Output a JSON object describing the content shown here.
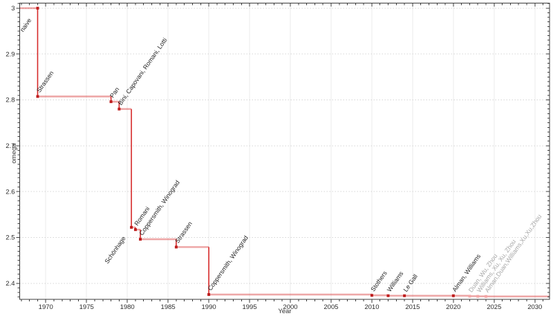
{
  "figure": {
    "xlabel": "Year",
    "ylabel": "omega"
  },
  "chart_data": {
    "type": "line",
    "subtype": "step-post",
    "title": "",
    "xlabel": "Year",
    "ylabel": "omega",
    "x_ticks_major": [
      1970,
      1975,
      1980,
      1985,
      1990,
      1995,
      2000,
      2005,
      2010,
      2015,
      2020,
      2025,
      2030
    ],
    "y_ticks_major": [
      2.4,
      2.5,
      2.6,
      2.7,
      2.8,
      2.9,
      3.0
    ],
    "x_minor_step": 1,
    "y_minor_step": 0.01,
    "x_range": [
      1966.8,
      2031.8
    ],
    "y_range": [
      2.365,
      3.011
    ],
    "grid": "major",
    "legend": "none",
    "annotation_rotation_deg": -55,
    "colors": {
      "step_horizontal": "rgba(214,45,45,0.42)",
      "step_vertical": "#d62828",
      "marker": "#be1e1e",
      "marker_muted": "#f2a6a6",
      "label": "#1f1f1f",
      "label_muted": "#a6a6a6",
      "frame": "#3a3a3a",
      "grid_vertical": "#ebebeb",
      "grid_horizontal": "#d4d4d4"
    },
    "points": [
      {
        "label": "naive",
        "year": 1969,
        "omega": 3.0,
        "muted": false,
        "label_offset": [
          -21,
          35
        ]
      },
      {
        "label": "Strassen",
        "year": 1969,
        "omega": 2.8074,
        "muted": false
      },
      {
        "label": "Pan",
        "year": 1978,
        "omega": 2.796,
        "muted": false
      },
      {
        "label": "Bini, Capovani, Romani, Lotti",
        "year": 1979,
        "omega": 2.78,
        "muted": false
      },
      {
        "label": "Schönhage",
        "year": 1980.5,
        "omega": 2.522,
        "muted": false,
        "label_offset": [
          -34,
          53
        ]
      },
      {
        "label": "Romani",
        "year": 1981,
        "omega": 2.517,
        "muted": false
      },
      {
        "label": "Coppersmith, Winograd",
        "year": 1981.6,
        "omega": 2.496,
        "muted": false
      },
      {
        "label": "Strassen",
        "year": 1986,
        "omega": 2.479,
        "muted": false
      },
      {
        "label": "Coppersmith, Winograd",
        "year": 1990,
        "omega": 2.3755,
        "muted": false
      },
      {
        "label": "Stothers",
        "year": 2010,
        "omega": 2.3737,
        "muted": false
      },
      {
        "label": "Williams",
        "year": 2012,
        "omega": 2.3729,
        "muted": false
      },
      {
        "label": "Le Gall",
        "year": 2014,
        "omega": 2.3728639,
        "muted": false
      },
      {
        "label": "Alman, Williams",
        "year": 2020,
        "omega": 2.3728596,
        "muted": false
      },
      {
        "label": "Duan, Wu, Zhou",
        "year": 2022,
        "omega": 2.371866,
        "muted": true
      },
      {
        "label": "Williams, Xu, Xu, Zhou",
        "year": 2023,
        "omega": 2.371552,
        "muted": true
      },
      {
        "label": "Alman,Duan,Williams,Xu,Xu,Zhou",
        "year": 2024,
        "omega": 2.371339,
        "muted": true
      }
    ]
  }
}
